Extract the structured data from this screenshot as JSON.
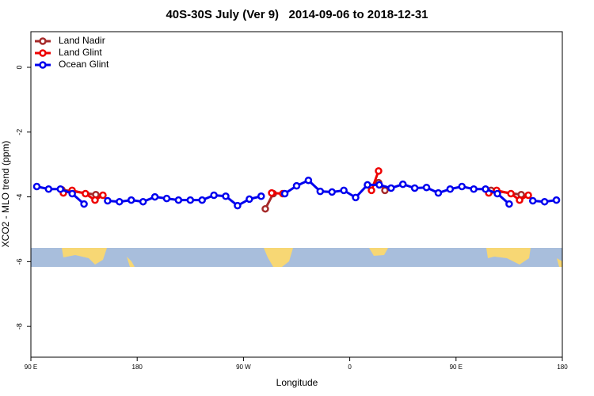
{
  "chart_data": {
    "type": "line",
    "title": "40S-30S July (Ver 9)   2014-09-06 to 2018-12-31",
    "xlabel": "Longitude",
    "ylabel": "XCO2 - MLO trend (ppm)",
    "xlim": [
      90,
      540
    ],
    "ylim": [
      -8.95,
      1.1
    ],
    "xticks": [
      {
        "value": 90,
        "label": "90 E"
      },
      {
        "value": 180,
        "label": "180"
      },
      {
        "value": 270,
        "label": "90 W"
      },
      {
        "value": 360,
        "label": "0"
      },
      {
        "value": 450,
        "label": "90 E"
      },
      {
        "value": 540,
        "label": "180"
      }
    ],
    "yticks": [
      0,
      -2,
      -4,
      -6,
      -8
    ],
    "legend": "top-left",
    "series": [
      {
        "name": "Land Nadir",
        "color": "#a52a2a",
        "x": [
          116.2,
          145,
          null,
          288.5,
          295.2,
          null,
          384.4,
          389.8,
          null,
          479.7,
          505.2
        ],
        "values": [
          -3.78,
          -3.93,
          null,
          -4.37,
          -3.9,
          null,
          -3.56,
          -3.8,
          null,
          -3.8,
          -3.93
        ]
      },
      {
        "name": "Land Glint",
        "color": "#ee0000",
        "x": [
          117.5,
          124.9,
          136.2,
          144.3,
          151,
          null,
          293.9,
          303.3,
          null,
          378.4,
          384.4,
          null,
          477.7,
          484.4,
          496.5,
          503.8,
          511.2
        ],
        "values": [
          -3.88,
          -3.8,
          -3.9,
          -4.1,
          -3.95,
          null,
          -3.88,
          -3.9,
          null,
          -3.8,
          -3.2,
          null,
          -3.88,
          -3.8,
          -3.9,
          -4.1,
          -3.95
        ]
      },
      {
        "name": "Ocean Glint",
        "color": "#0000ee",
        "x": [
          95,
          105,
          115,
          125,
          135,
          145,
          155,
          165,
          175,
          185,
          195,
          205,
          215,
          225,
          235,
          245,
          255,
          265,
          275,
          285,
          295,
          305,
          315,
          325,
          335,
          345,
          355,
          365,
          375,
          385,
          395,
          405,
          415,
          425,
          435,
          445,
          455,
          465,
          475,
          485,
          495,
          505,
          515,
          525,
          535
        ],
        "values": [
          -3.68,
          -3.76,
          -3.76,
          -3.9,
          -4.22,
          null,
          -4.12,
          -4.15,
          -4.1,
          -4.15,
          -4.0,
          -4.05,
          -4.1,
          -4.1,
          -4.1,
          -3.95,
          -3.98,
          -4.27,
          -4.07,
          -3.98,
          null,
          -3.9,
          -3.66,
          -3.49,
          -3.83,
          -3.85,
          -3.8,
          -4.02,
          -3.63,
          -3.63,
          -3.73,
          -3.61,
          -3.73,
          -3.71,
          -3.88,
          -3.76,
          -3.68,
          -3.76,
          -3.76,
          -3.9,
          -4.22,
          null,
          -4.12,
          -4.15,
          -4.1
        ]
      }
    ]
  }
}
